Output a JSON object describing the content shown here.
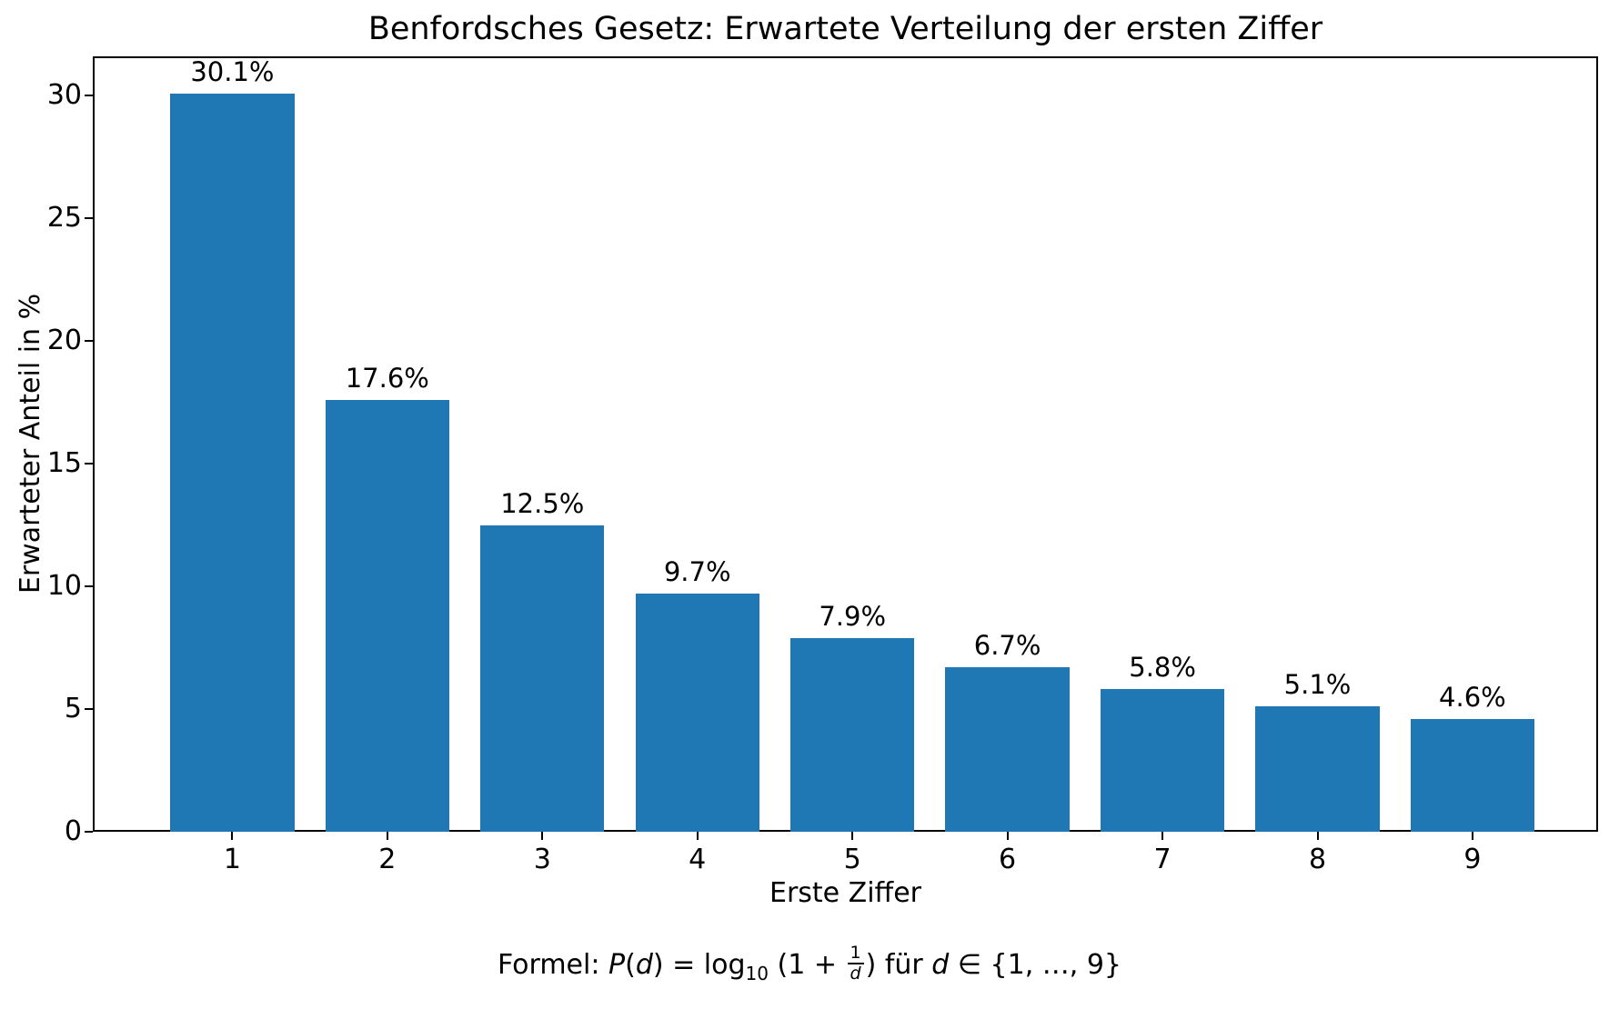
{
  "chart_data": {
    "type": "bar",
    "title": "Benfordsches Gesetz: Erwartete Verteilung der ersten Ziffer",
    "xlabel": "Erste Ziffer",
    "ylabel": "Erwarteter Anteil in %",
    "categories": [
      "1",
      "2",
      "3",
      "4",
      "5",
      "6",
      "7",
      "8",
      "9"
    ],
    "values": [
      30.1,
      17.6,
      12.5,
      9.7,
      7.9,
      6.7,
      5.8,
      5.1,
      4.6
    ],
    "bar_labels": [
      "30.1%",
      "17.6%",
      "12.5%",
      "9.7%",
      "7.9%",
      "6.7%",
      "5.8%",
      "5.1%",
      "4.6%"
    ],
    "yticks": [
      0,
      5,
      10,
      15,
      20,
      25,
      30
    ],
    "ylim": [
      0,
      31.6
    ],
    "xlim": [
      0.1,
      9.81
    ],
    "bar_width": 0.8,
    "bar_color": "#1f77b4",
    "axis_color": "#000000",
    "grid": false,
    "legend": null
  },
  "formula": {
    "parts": [
      {
        "style": "plain",
        "text": "Formel: "
      },
      {
        "style": "italic",
        "text": "P"
      },
      {
        "style": "plain",
        "text": "("
      },
      {
        "style": "italic",
        "text": "d"
      },
      {
        "style": "plain",
        "text": ") = log"
      },
      {
        "style": "sub",
        "text": "10"
      },
      {
        "style": "plain",
        "text": " (1 + "
      },
      {
        "style": "frac",
        "num": "1",
        "den": "d"
      },
      {
        "style": "plain",
        "text": ") für "
      },
      {
        "style": "italic",
        "text": "d"
      },
      {
        "style": "plain",
        "text": " ∈ {1, …, 9}"
      }
    ]
  }
}
